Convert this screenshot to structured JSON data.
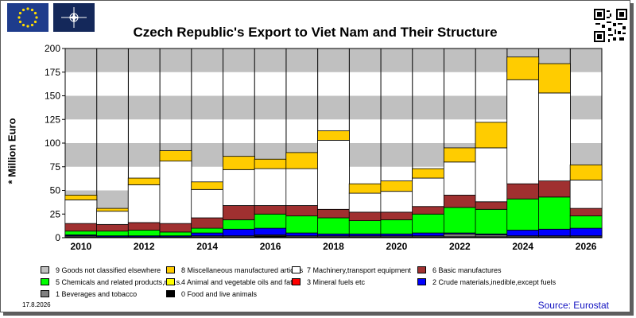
{
  "header": {
    "title": "Czech Republic's Export to Viet Nam and Their Structure",
    "eu_flag_icon": "eu-flag-icon",
    "nato_flag_icon": "nato-flag-icon",
    "qr_icon": "qr-code-icon"
  },
  "footer": {
    "date": "17.8.2026",
    "source": "Source: Eurostat"
  },
  "colors": {
    "background": "#ffffff",
    "plot_band_light": "#ffffff",
    "plot_band_dark": "#c0c0c0",
    "source_text": "#1010c0"
  },
  "chart_data": {
    "type": "bar",
    "stacked": true,
    "title": "Czech Republic's Export to Viet Nam and Their Structure",
    "ylabel": "* Million Euro",
    "xlabel": "",
    "ylim": [
      0,
      200
    ],
    "yticks": [
      0,
      25,
      50,
      75,
      100,
      125,
      150,
      175,
      200
    ],
    "xtick_labels": [
      "2010",
      "2012",
      "2014",
      "2016",
      "2018",
      "2020",
      "2022",
      "2024",
      "2026"
    ],
    "grid": true,
    "legend_position": "bottom",
    "categories": [
      "2010",
      "2011",
      "2012",
      "2013",
      "2014",
      "2015",
      "2016",
      "2017",
      "2018",
      "2019",
      "2020",
      "2021",
      "2022",
      "2023",
      "2024",
      "2025",
      "2026"
    ],
    "series": [
      {
        "name": "0 Food and live animals",
        "color": "#000000",
        "values": [
          1,
          0.5,
          0.5,
          0.5,
          1,
          1,
          2,
          1,
          1,
          1,
          1,
          1,
          1,
          1,
          1,
          1,
          1
        ]
      },
      {
        "name": "1 Beverages and tobacco",
        "color": "#808080",
        "values": [
          1,
          0.5,
          0.5,
          0.5,
          1,
          1,
          1,
          1,
          1,
          1,
          1,
          1,
          3,
          2,
          1,
          1,
          1
        ]
      },
      {
        "name": "2 Crude materials,inedible,except fuels",
        "color": "#0000ff",
        "values": [
          1,
          1,
          1,
          1,
          3,
          7,
          7,
          3,
          2,
          2,
          2,
          3,
          1,
          1,
          6,
          7,
          8
        ]
      },
      {
        "name": "3 Mineral fuels etc",
        "color": "#ff0000",
        "values": [
          0,
          0,
          0,
          0,
          0,
          0,
          0,
          0,
          0,
          0,
          0,
          0,
          0,
          0,
          0,
          0,
          0
        ]
      },
      {
        "name": "4 Animal and vegetable oils and fats",
        "color": "#ffff00",
        "values": [
          0,
          0,
          0,
          0,
          0,
          0,
          0,
          0,
          0,
          0,
          0,
          0,
          0,
          0,
          0,
          0,
          0
        ]
      },
      {
        "name": "5 Chemicals and related products,n.e.s.",
        "color": "#00ff00",
        "values": [
          4,
          5,
          6,
          4,
          5,
          10,
          15,
          18,
          17,
          14,
          15,
          20,
          27,
          26,
          33,
          34,
          13
        ]
      },
      {
        "name": "6 Basic manufactures",
        "color": "#a03030",
        "values": [
          8,
          7,
          8,
          9,
          11,
          15,
          9,
          11,
          9,
          9,
          8,
          8,
          13,
          8,
          16,
          17,
          8
        ]
      },
      {
        "name": "7 Machinery,transport equipment",
        "color": "#ffffff",
        "values": [
          25,
          14,
          40,
          66,
          30,
          38,
          39,
          39,
          73,
          20,
          22,
          30,
          35,
          57,
          110,
          93,
          30
        ]
      },
      {
        "name": "8 Miscellaneous manufactured articles",
        "color": "#ffcc00",
        "values": [
          5,
          3,
          7,
          11,
          8,
          14,
          10,
          17,
          10,
          10,
          11,
          10,
          15,
          27,
          24,
          31,
          16
        ]
      },
      {
        "name": "9 Goods not classified elsewhere",
        "color": "#c0c0c0",
        "values": [
          0,
          0,
          0,
          0,
          0,
          0,
          0,
          0,
          0,
          0,
          0,
          0,
          0,
          0,
          0,
          0,
          0
        ]
      }
    ]
  }
}
